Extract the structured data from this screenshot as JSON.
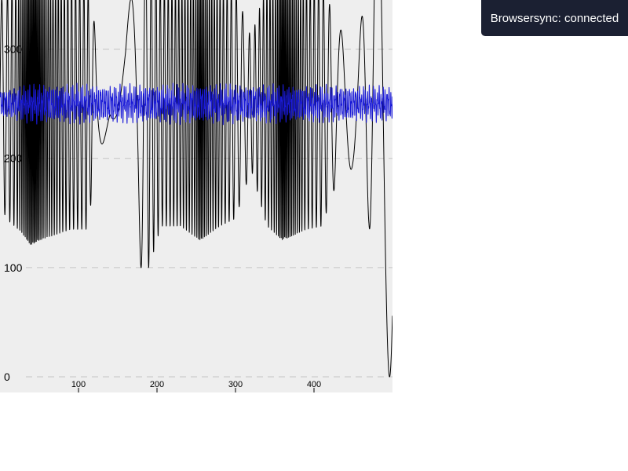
{
  "notification": {
    "text": "Browsersync: connected",
    "background": "#1b2032"
  },
  "chart_data": {
    "type": "line",
    "title": "",
    "xlabel": "",
    "ylabel": "",
    "xlim": [
      0,
      500
    ],
    "ylim": [
      0,
      345
    ],
    "grid": "horizontal-dashed",
    "background": "#eeeeee",
    "y_ticks": [
      0,
      100,
      200,
      300
    ],
    "y_tick_labels": [
      "0",
      "100",
      "200",
      "300"
    ],
    "x_ticks": [
      100,
      200,
      300,
      400
    ],
    "x_tick_labels": [
      "100",
      "200",
      "300",
      "400"
    ],
    "series": [
      {
        "color": "#000000",
        "stroke_width": 1,
        "baseline": 250,
        "envelope": [
          [
            0,
            95
          ],
          [
            12,
            108
          ],
          [
            25,
            116
          ],
          [
            40,
            130
          ],
          [
            50,
            125
          ],
          [
            70,
            120
          ],
          [
            90,
            115
          ],
          [
            110,
            115
          ],
          [
            125,
            55
          ],
          [
            140,
            12
          ],
          [
            160,
            60
          ],
          [
            175,
            150
          ],
          [
            190,
            150
          ],
          [
            205,
            112
          ],
          [
            230,
            112
          ],
          [
            255,
            125
          ],
          [
            280,
            112
          ],
          [
            300,
            105
          ],
          [
            320,
            60
          ],
          [
            340,
            112
          ],
          [
            360,
            125
          ],
          [
            390,
            115
          ],
          [
            410,
            112
          ],
          [
            425,
            80
          ],
          [
            440,
            60
          ],
          [
            455,
            60
          ],
          [
            470,
            110
          ],
          [
            485,
            250
          ],
          [
            500,
            250
          ]
        ],
        "cycles": [
          [
            0,
            1
          ],
          [
            8,
            1.5
          ],
          [
            20,
            2.2
          ],
          [
            35,
            6
          ],
          [
            45,
            7
          ],
          [
            60,
            3.5
          ],
          [
            90,
            2
          ],
          [
            112,
            1.8
          ],
          [
            125,
            0.3
          ],
          [
            140,
            0.1
          ],
          [
            160,
            0.2
          ],
          [
            175,
            0.3
          ],
          [
            192,
            1.6
          ],
          [
            220,
            2.2
          ],
          [
            248,
            3
          ],
          [
            255,
            6
          ],
          [
            265,
            3.5
          ],
          [
            285,
            2.2
          ],
          [
            310,
            1
          ],
          [
            330,
            1.8
          ],
          [
            350,
            3
          ],
          [
            360,
            7
          ],
          [
            370,
            5
          ],
          [
            390,
            2.2
          ],
          [
            410,
            1.6
          ],
          [
            430,
            0.5
          ],
          [
            450,
            0.3
          ],
          [
            470,
            0.6
          ],
          [
            485,
            0.3
          ],
          [
            500,
            0.3
          ]
        ]
      },
      {
        "color": "#1a1ad8",
        "stroke_width": 1,
        "baseline": 250,
        "envelope": [
          [
            0,
            13
          ],
          [
            30,
            16
          ],
          [
            50,
            18
          ],
          [
            150,
            17
          ],
          [
            250,
            18
          ],
          [
            350,
            17
          ],
          [
            500,
            16
          ]
        ],
        "cycles": [
          [
            0,
            4
          ],
          [
            500,
            4
          ]
        ],
        "irregular": true
      }
    ]
  }
}
